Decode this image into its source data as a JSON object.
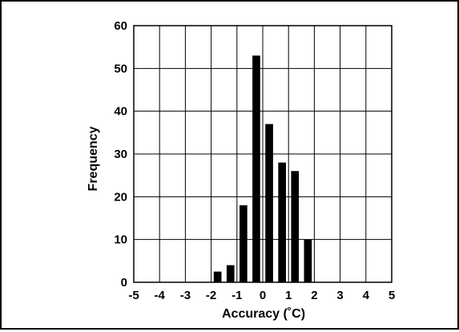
{
  "chart_data": {
    "type": "bar",
    "title": "",
    "xlabel": "Accuracy (˚C)",
    "ylabel": "Frequency",
    "xlim": [
      -5,
      5
    ],
    "ylim": [
      0,
      60
    ],
    "x_ticks": [
      "-5",
      "-4",
      "-3",
      "-2",
      "-1",
      "0",
      "1",
      "2",
      "3",
      "4",
      "5"
    ],
    "y_ticks": [
      "0",
      "10",
      "20",
      "30",
      "40",
      "50",
      "60"
    ],
    "grid": true,
    "legend": "none",
    "bar_color": "#000000",
    "x": [
      -1.75,
      -1.25,
      -0.75,
      -0.25,
      0.25,
      0.75,
      1.25,
      1.75
    ],
    "values": [
      2.5,
      4,
      18,
      53,
      37,
      28,
      26,
      10
    ]
  }
}
